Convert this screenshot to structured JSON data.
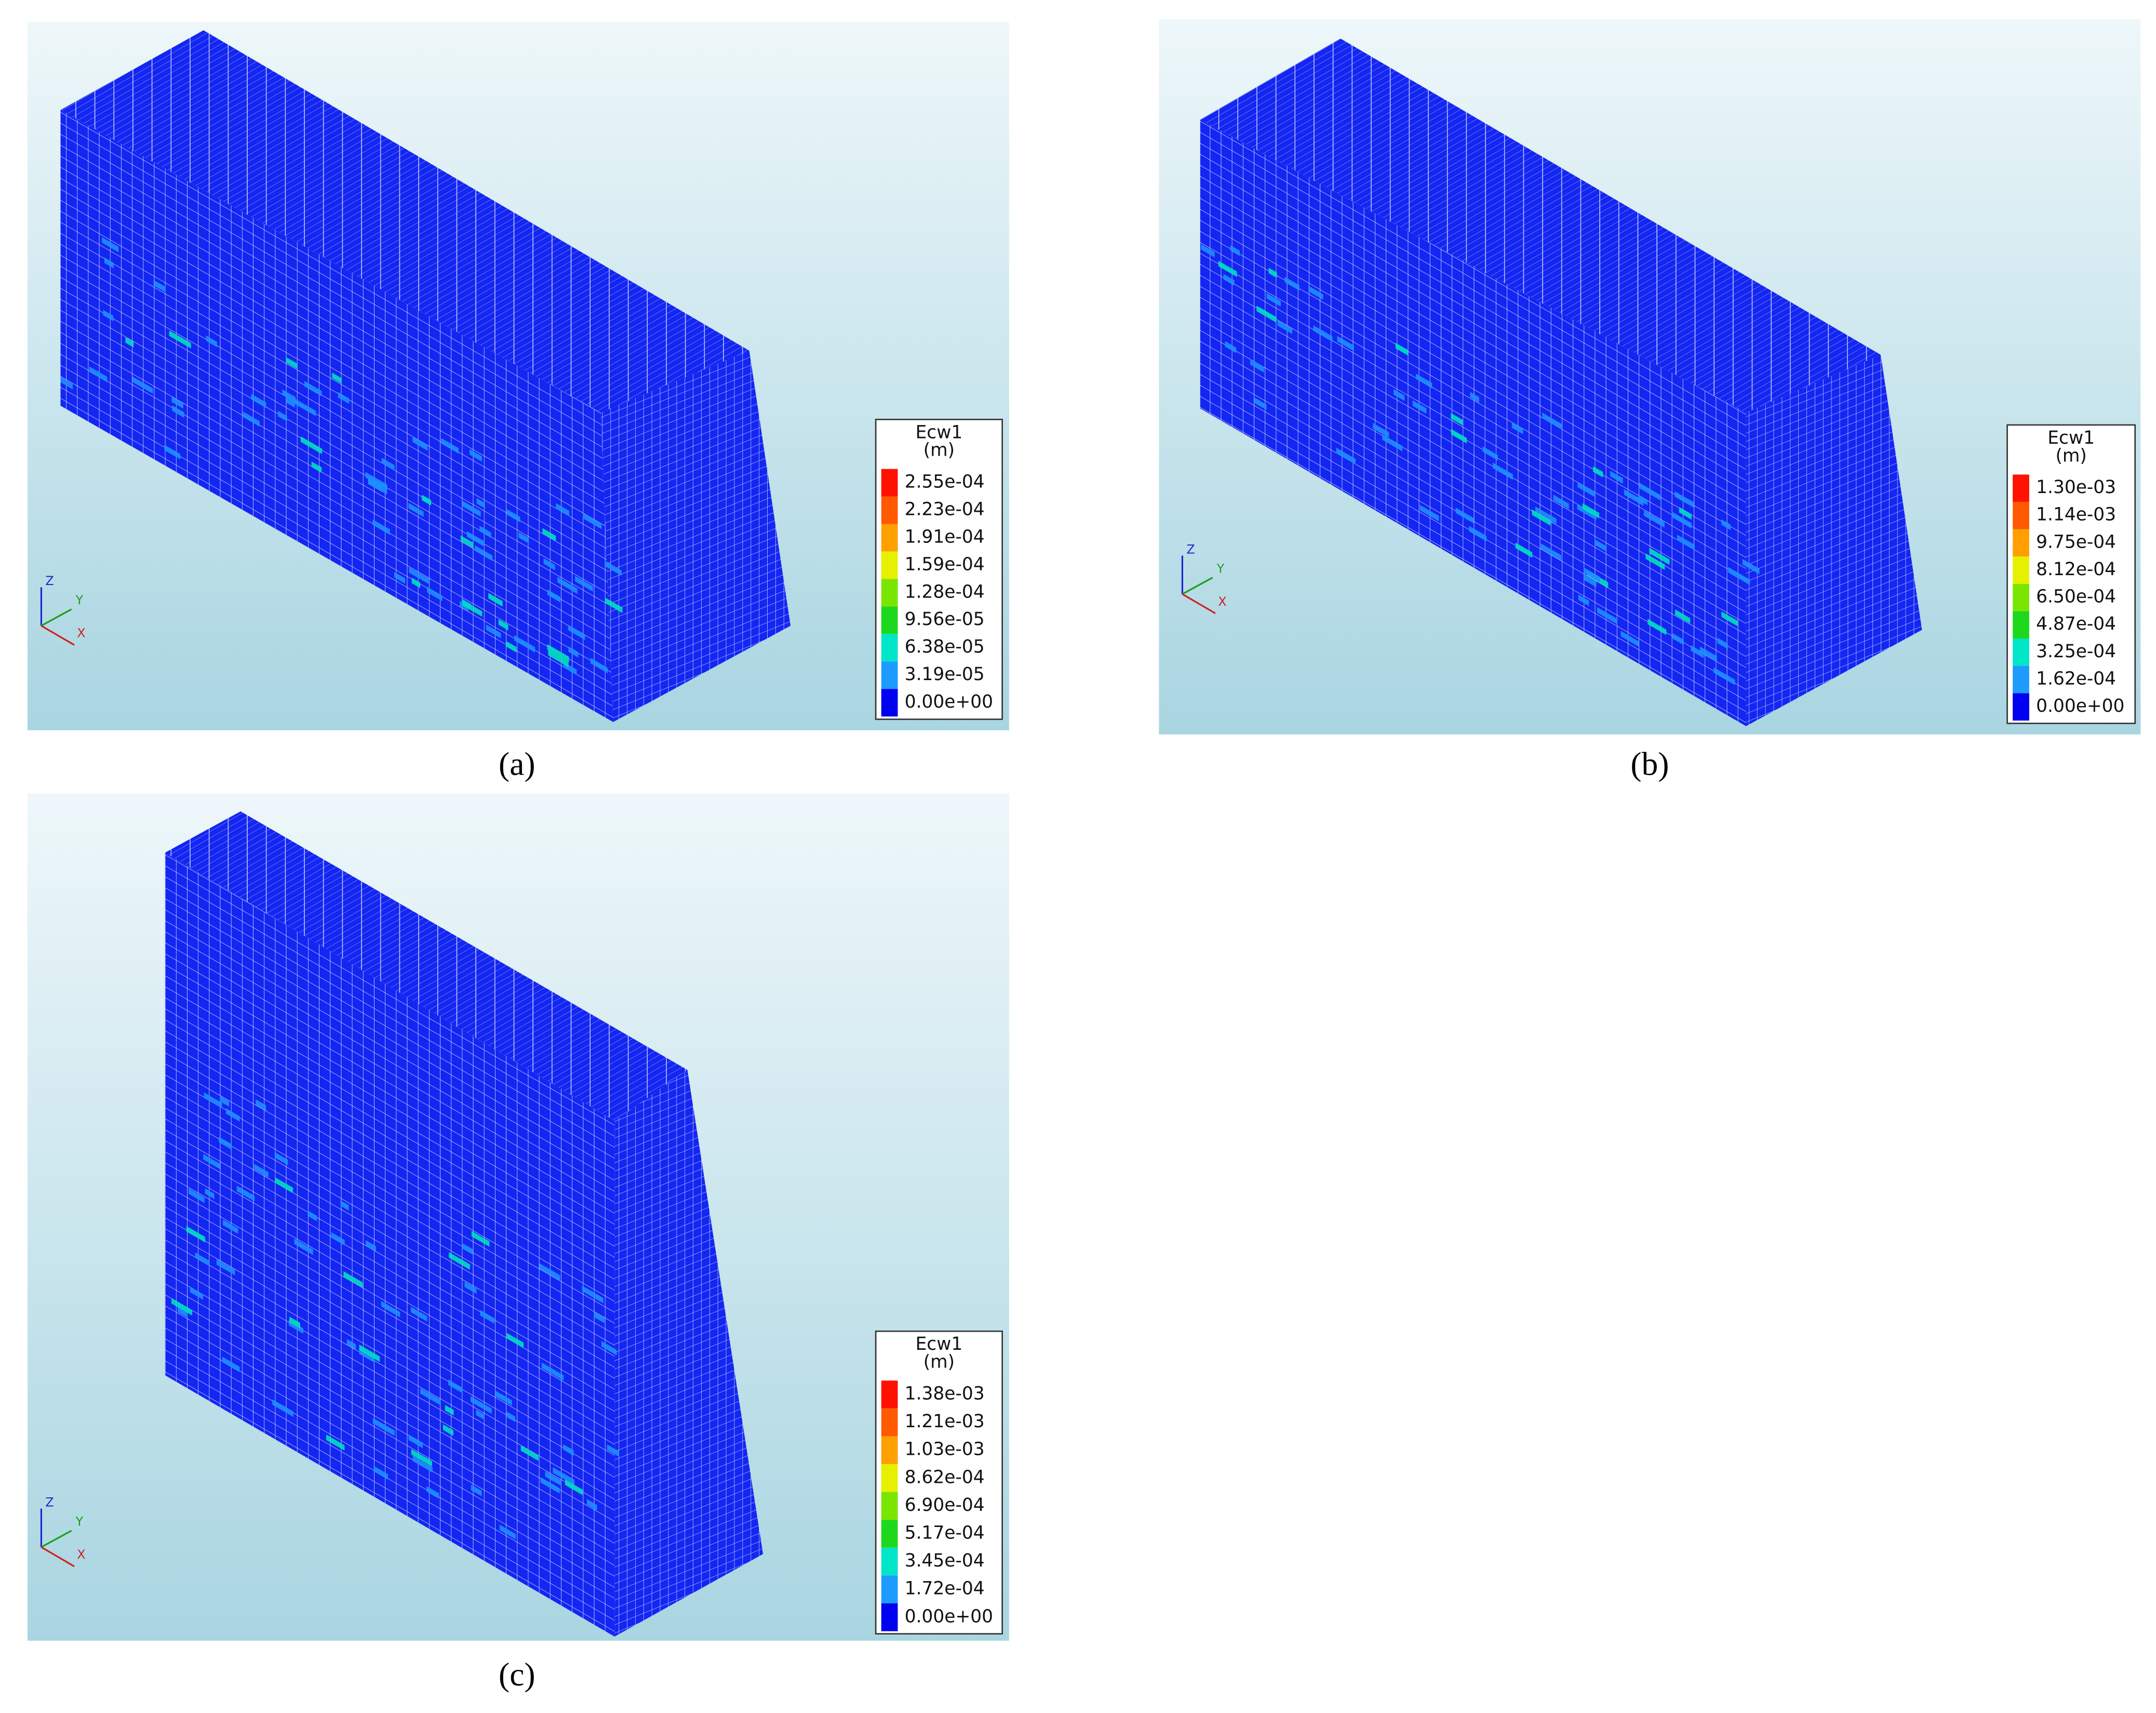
{
  "panels": [
    {
      "caption": "(a)",
      "legend": {
        "title": "Ecw1",
        "unit": "(m)",
        "labels": [
          "2.55e-04",
          "2.23e-04",
          "1.91e-04",
          "1.59e-04",
          "1.28e-04",
          "9.56e-05",
          "6.38e-05",
          "3.19e-05",
          "0.00e+00"
        ]
      },
      "axes": {
        "z": "Z",
        "y": "Y",
        "x": "X"
      }
    },
    {
      "caption": "(b)",
      "legend": {
        "title": "Ecw1",
        "unit": "(m)",
        "labels": [
          "1.30e-03",
          "1.14e-03",
          "9.75e-04",
          "8.12e-04",
          "6.50e-04",
          "4.87e-04",
          "3.25e-04",
          "1.62e-04",
          "0.00e+00"
        ]
      },
      "axes": {
        "z": "Z",
        "y": "Y",
        "x": "X"
      }
    },
    {
      "caption": "(c)",
      "legend": {
        "title": "Ecw1",
        "unit": "(m)",
        "labels": [
          "1.38e-03",
          "1.21e-03",
          "1.03e-03",
          "8.62e-04",
          "6.90e-04",
          "5.17e-04",
          "3.45e-04",
          "1.72e-04",
          "0.00e+00"
        ]
      },
      "axes": {
        "z": "Z",
        "y": "Y",
        "x": "X"
      }
    }
  ]
}
